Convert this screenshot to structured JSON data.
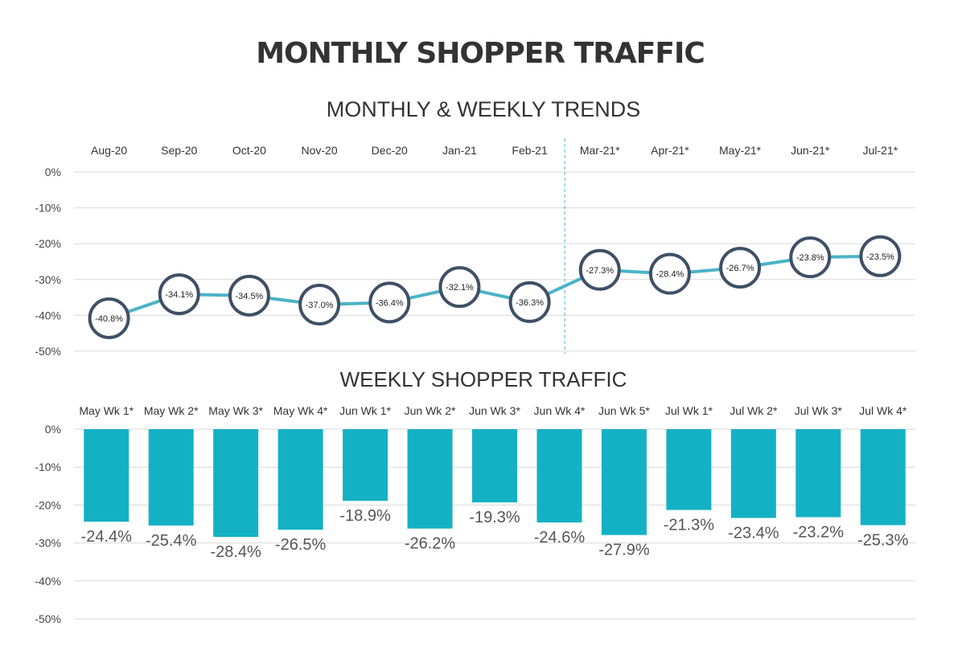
{
  "title": "MONTHLY SHOPPER TRAFFIC",
  "chart_data": [
    {
      "type": "line",
      "title": "MONTHLY & WEEKLY TRENDS",
      "categories": [
        "Aug-20",
        "Sep-20",
        "Oct-20",
        "Nov-20",
        "Dec-20",
        "Jan-21",
        "Feb-21",
        "Mar-21*",
        "Apr-21*",
        "May-21*",
        "Jun-21*",
        "Jul-21*"
      ],
      "values": [
        -40.8,
        -34.1,
        -34.5,
        -37.0,
        -36.4,
        -32.1,
        -36.3,
        -27.3,
        -28.4,
        -26.7,
        -23.8,
        -23.5
      ],
      "data_labels": [
        "-40.8%",
        "-34.1%",
        "-34.5%",
        "-37.0%",
        "-36.4%",
        "-32.1%",
        "-36.3%",
        "-27.3%",
        "-28.4%",
        "-26.7%",
        "-23.8%",
        "-23.5%"
      ],
      "ylim": [
        -50,
        0
      ],
      "yticks": [
        "0%",
        "-10%",
        "-20%",
        "-30%",
        "-40%",
        "-50%"
      ],
      "grid": true,
      "x_axis_position": "top",
      "divider_after": "Feb-21",
      "line_color": "#4bb3c8",
      "marker_edge_color": "#3f5066"
    },
    {
      "type": "bar",
      "title": "WEEKLY SHOPPER TRAFFIC",
      "categories": [
        "May Wk 1*",
        "May Wk 2*",
        "May Wk 3*",
        "May Wk 4*",
        "Jun Wk 1*",
        "Jun Wk 2*",
        "Jun Wk 3*",
        "Jun Wk 4*",
        "Jun Wk 5*",
        "Jul Wk 1*",
        "Jul Wk 2*",
        "Jul Wk 3*",
        "Jul Wk 4*"
      ],
      "values": [
        -24.4,
        -25.4,
        -28.4,
        -26.5,
        -18.9,
        -26.2,
        -19.3,
        -24.6,
        -27.9,
        -21.3,
        -23.4,
        -23.2,
        -25.3
      ],
      "data_labels": [
        "-24.4%",
        "-25.4%",
        "-28.4%",
        "-26.5%",
        "-18.9%",
        "-26.2%",
        "-19.3%",
        "-24.6%",
        "-27.9%",
        "-21.3%",
        "-23.4%",
        "-23.2%",
        "-25.3%"
      ],
      "ylim": [
        -50,
        0
      ],
      "yticks": [
        "0%",
        "-10%",
        "-20%",
        "-30%",
        "-40%",
        "-50%"
      ],
      "grid": true,
      "x_axis_position": "top",
      "bar_color": "#14b1c4"
    }
  ]
}
